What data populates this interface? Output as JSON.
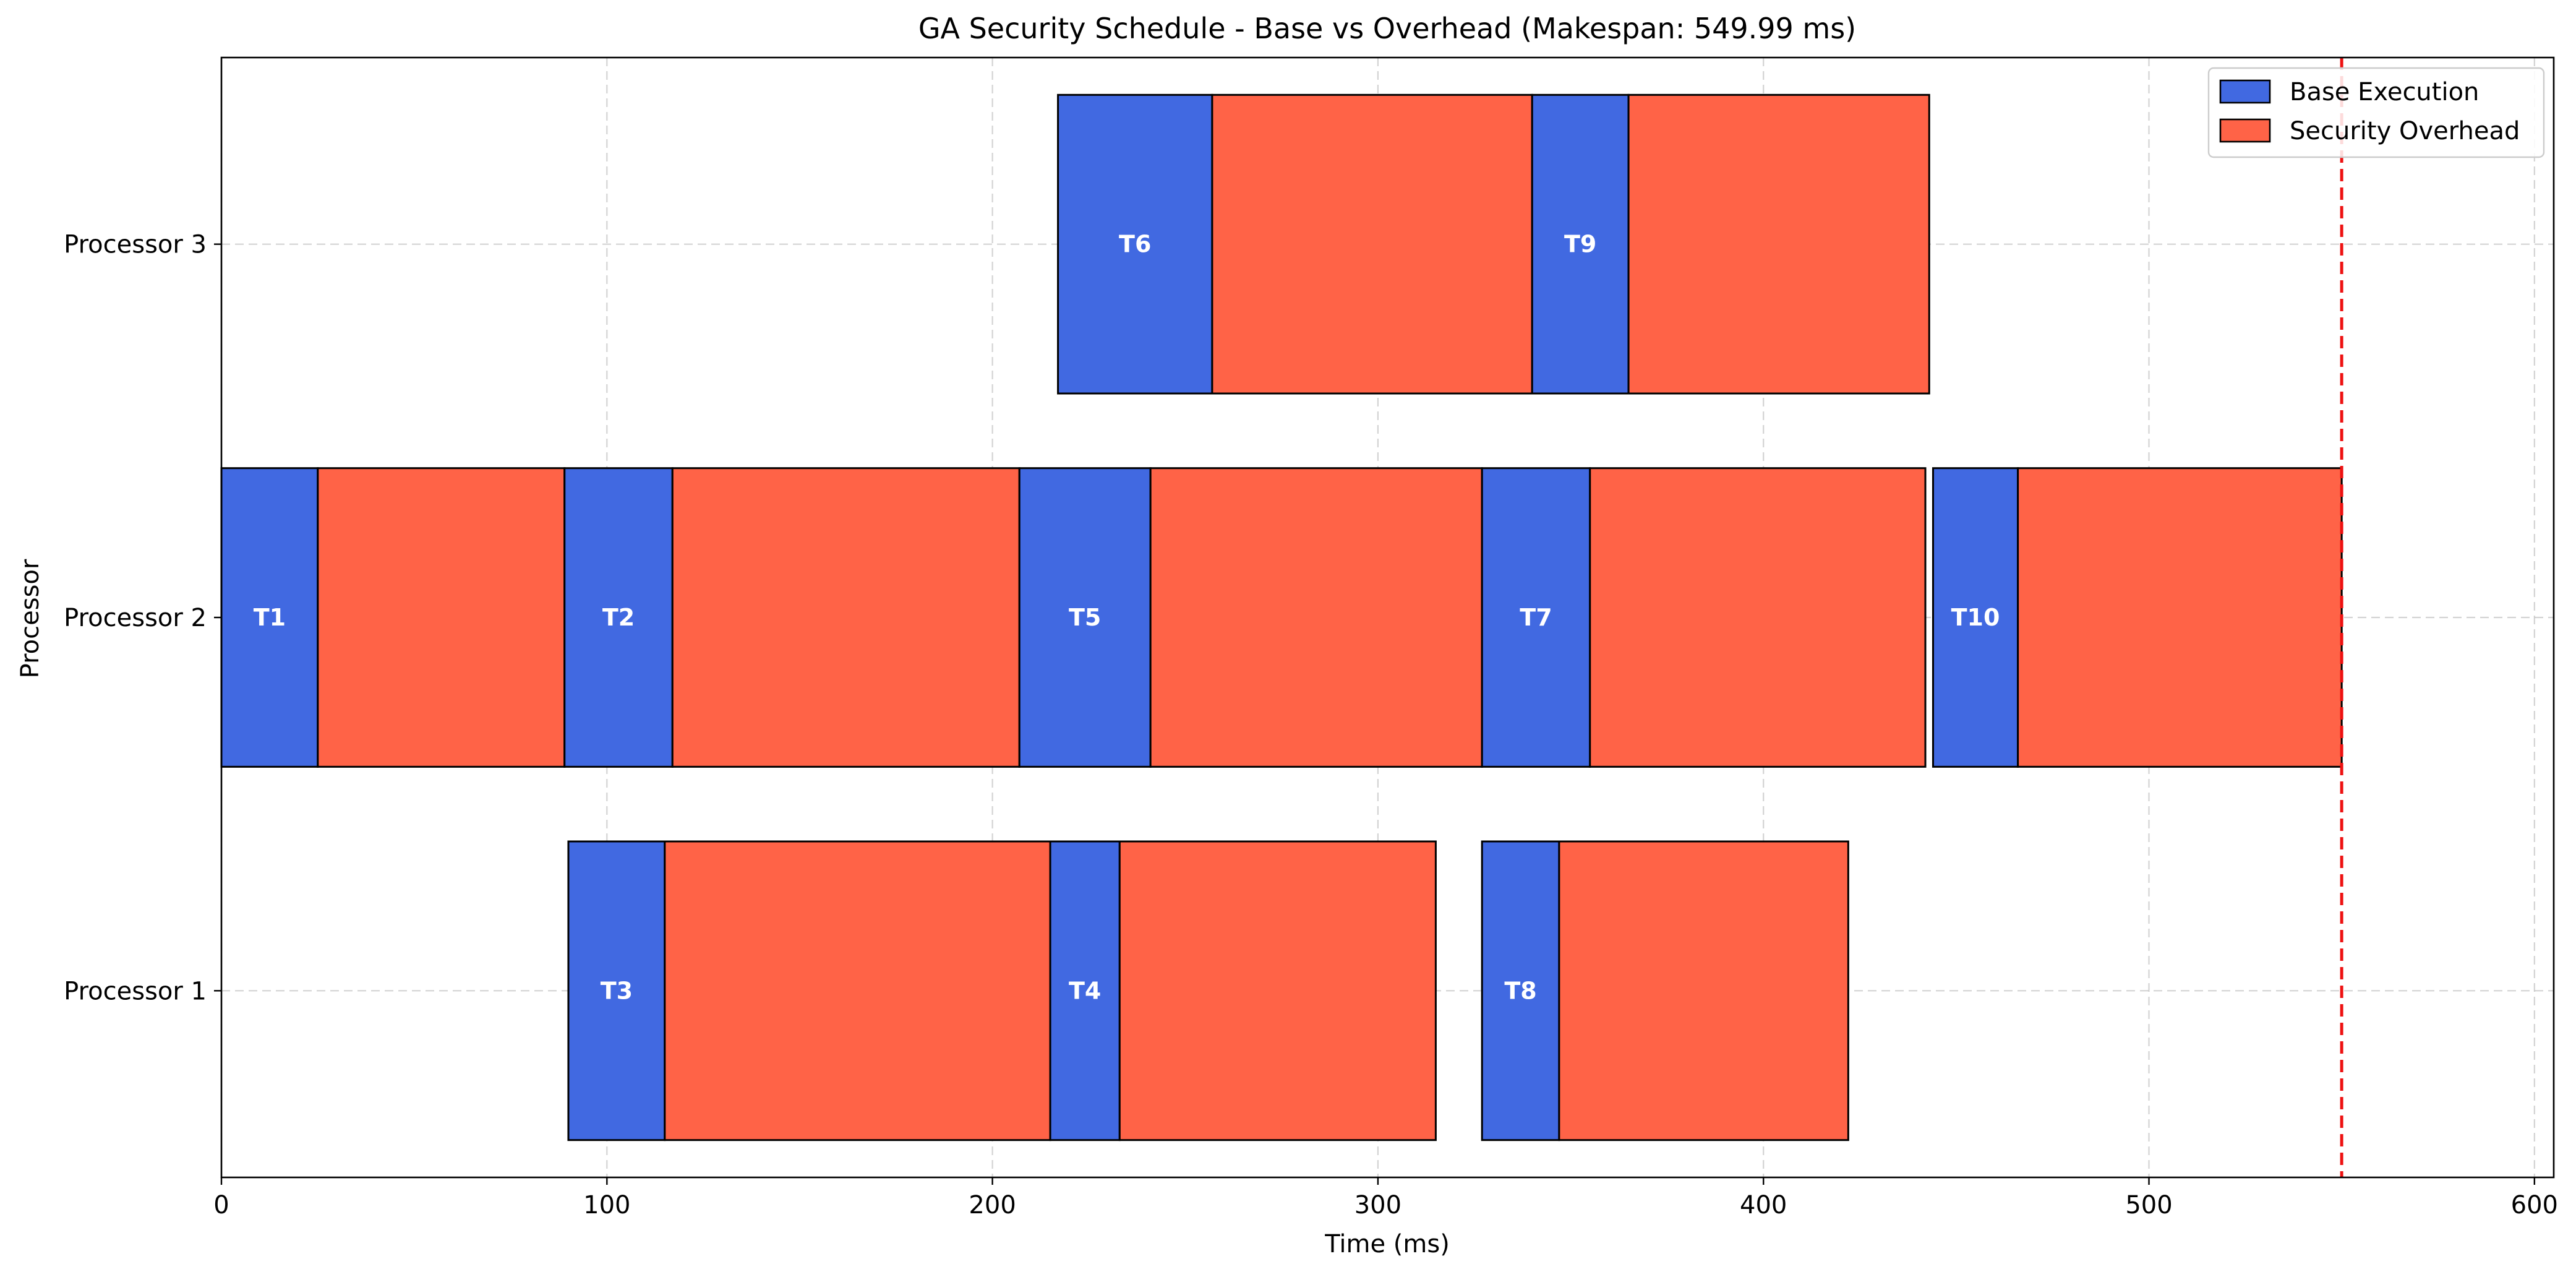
{
  "chart_data": {
    "type": "gantt",
    "title": "GA Security Schedule - Base vs Overhead (Makespan: 549.99 ms)",
    "xlabel": "Time (ms)",
    "ylabel": "Processor",
    "xlim": [
      0,
      605
    ],
    "x_ticks": [
      0,
      100,
      200,
      300,
      400,
      500,
      600
    ],
    "processors": [
      "Processor 1",
      "Processor 2",
      "Processor 3"
    ],
    "grid": true,
    "legend": {
      "position": "top-right",
      "entries": [
        {
          "name": "Base Execution",
          "color": "#4169E1"
        },
        {
          "name": "Security Overhead",
          "color": "#FF6347"
        }
      ]
    },
    "makespan": 549.99,
    "makespan_line_color": "#EE1111",
    "tasks": [
      {
        "task": "T1",
        "processor": "Processor 2",
        "start": 0,
        "base_end": 25,
        "end": 89
      },
      {
        "task": "T2",
        "processor": "Processor 2",
        "start": 89,
        "base_end": 117,
        "end": 207
      },
      {
        "task": "T5",
        "processor": "Processor 2",
        "start": 207,
        "base_end": 241,
        "end": 327
      },
      {
        "task": "T7",
        "processor": "Processor 2",
        "start": 327,
        "base_end": 355,
        "end": 442
      },
      {
        "task": "T10",
        "processor": "Processor 2",
        "start": 444,
        "base_end": 466,
        "end": 550
      },
      {
        "task": "T3",
        "processor": "Processor 1",
        "start": 90,
        "base_end": 115,
        "end": 215
      },
      {
        "task": "T4",
        "processor": "Processor 1",
        "start": 215,
        "base_end": 233,
        "end": 315
      },
      {
        "task": "T8",
        "processor": "Processor 1",
        "start": 327,
        "base_end": 347,
        "end": 422
      },
      {
        "task": "T6",
        "processor": "Processor 3",
        "start": 217,
        "base_end": 257,
        "end": 340
      },
      {
        "task": "T9",
        "processor": "Processor 3",
        "start": 340,
        "base_end": 365,
        "end": 443
      }
    ]
  }
}
